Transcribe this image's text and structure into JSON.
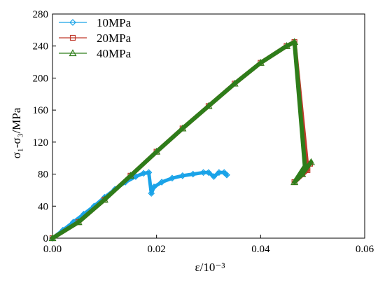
{
  "chart_data": {
    "type": "line",
    "xlabel": "ε/10⁻³",
    "ylabel": "σ₁-σ₃/MPa",
    "xlim": [
      0,
      0.06
    ],
    "ylim": [
      0,
      280
    ],
    "xticks": [
      "0.00",
      "0.02",
      "0.04",
      "0.06"
    ],
    "yticks": [
      "0",
      "40",
      "80",
      "120",
      "160",
      "200",
      "240",
      "280"
    ],
    "legend_position": "top-left",
    "series": [
      {
        "name": "10MPa",
        "color": "#1aa3e8",
        "marker": "diamond",
        "x": [
          0,
          0.002,
          0.004,
          0.006,
          0.008,
          0.01,
          0.012,
          0.014,
          0.016,
          0.0175,
          0.0185,
          0.019,
          0.0195,
          0.021,
          0.023,
          0.025,
          0.027,
          0.029,
          0.03,
          0.031,
          0.032,
          0.033,
          0.0335
        ],
        "y": [
          0,
          10,
          20,
          30,
          40,
          51,
          61,
          70,
          77,
          81,
          82,
          56,
          64,
          70,
          75,
          78,
          80,
          82,
          82,
          77,
          82,
          82,
          79
        ]
      },
      {
        "name": "20MPa",
        "color": "#c0392b",
        "marker": "square",
        "x": [
          0,
          0.005,
          0.01,
          0.015,
          0.02,
          0.025,
          0.03,
          0.035,
          0.04,
          0.045,
          0.0465,
          0.049,
          0.0465,
          0.048,
          0.0495
        ],
        "y": [
          0,
          20,
          48,
          78,
          108,
          137,
          165,
          193,
          219,
          240,
          245,
          85,
          70,
          80,
          93
        ]
      },
      {
        "name": "40MPa",
        "color": "#2e7d1a",
        "marker": "triangle",
        "x": [
          0,
          0.005,
          0.01,
          0.015,
          0.02,
          0.025,
          0.03,
          0.035,
          0.04,
          0.045,
          0.0465,
          0.0485,
          0.0465,
          0.048,
          0.0497
        ],
        "y": [
          0,
          20,
          48,
          78,
          108,
          137,
          165,
          193,
          219,
          240,
          245,
          90,
          70,
          80,
          95
        ]
      }
    ]
  }
}
